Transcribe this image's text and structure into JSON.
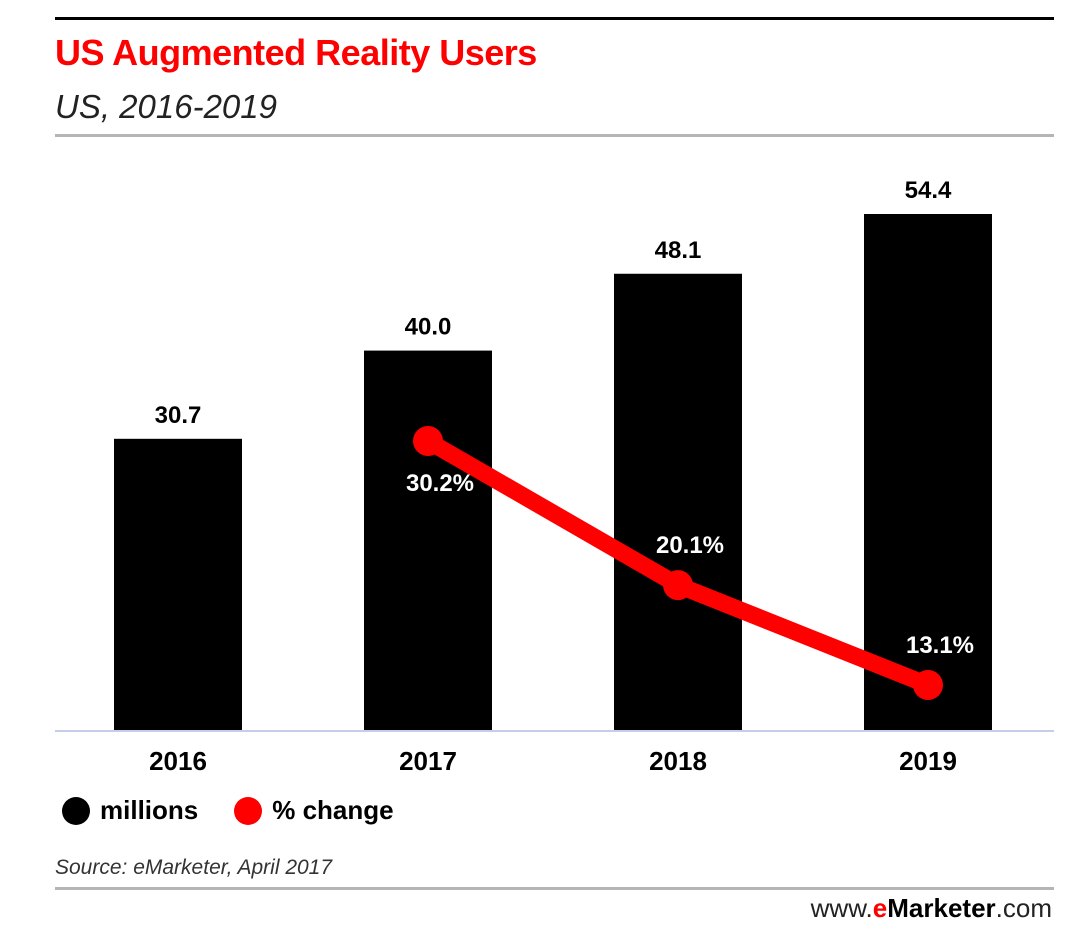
{
  "header": {
    "title": "US Augmented Reality Users",
    "subtitle": "US, 2016-2019"
  },
  "chart_data": {
    "type": "bar",
    "title": "US Augmented Reality Users",
    "subtitle": "US, 2016-2019",
    "categories": [
      "2016",
      "2017",
      "2018",
      "2019"
    ],
    "series": [
      {
        "name": "millions",
        "type": "bar",
        "color": "#000000",
        "values": [
          30.7,
          40.0,
          48.1,
          54.4
        ],
        "labels": [
          "30.7",
          "40.0",
          "48.1",
          "54.4"
        ]
      },
      {
        "name": "% change",
        "type": "line",
        "color": "#ff0000",
        "values": [
          null,
          30.2,
          20.1,
          13.1
        ],
        "labels": [
          "",
          "30.2%",
          "20.1%",
          "13.1%"
        ]
      }
    ],
    "xlabel": "",
    "ylabel": "",
    "ylim": [
      0,
      60
    ],
    "grid": false,
    "legend": "bottom-left"
  },
  "legend": {
    "items": [
      {
        "label": "millions",
        "color": "#000000"
      },
      {
        "label": "% change",
        "color": "#ff0000"
      }
    ]
  },
  "footer": {
    "source": "Source: eMarketer, April 2017",
    "brand_prefix": "www.",
    "brand_e": "e",
    "brand_name": "Marketer",
    "brand_suffix": ".com"
  },
  "colors": {
    "accent": "#ff0000",
    "bar": "#000000",
    "baseline": "#c5cde8"
  }
}
